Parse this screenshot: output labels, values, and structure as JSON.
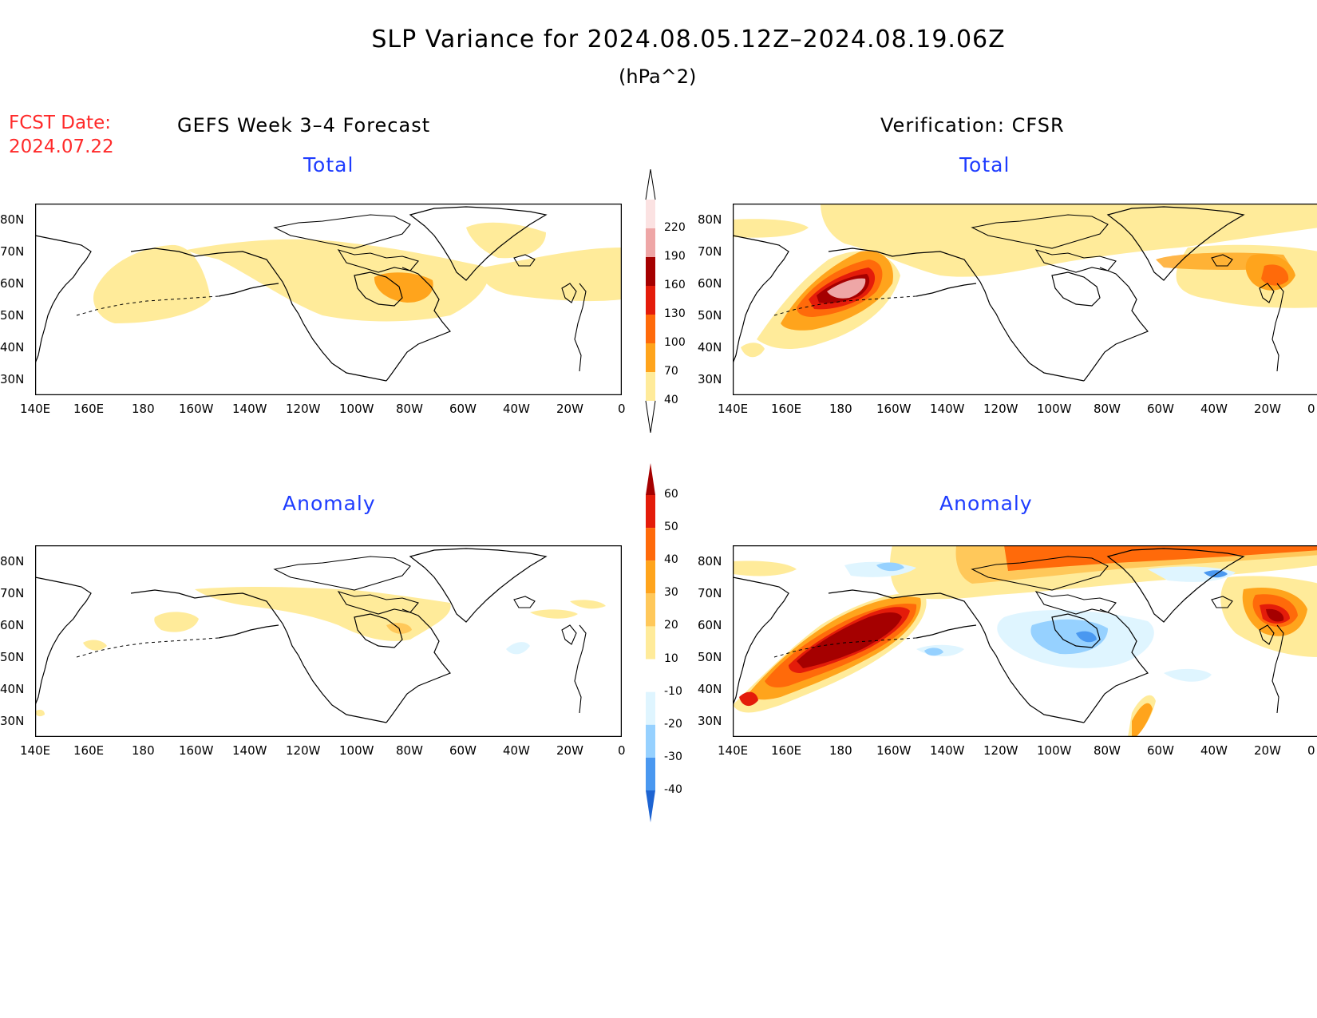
{
  "header": {
    "title": "SLP Variance for 2024.08.05.12Z–2024.08.19.06Z",
    "units": "(hPa^2)",
    "fcst_label": "FCST Date:",
    "fcst_date": "2024.07.22"
  },
  "columns": {
    "left_title": "GEFS Week 3–4 Forecast",
    "right_title": "Verification: CFSR"
  },
  "panel_labels": {
    "total": "Total",
    "anomaly": "Anomaly"
  },
  "axes": {
    "lat_labels": [
      "80N",
      "70N",
      "60N",
      "50N",
      "40N",
      "30N"
    ],
    "lon_labels": [
      "140E",
      "160E",
      "180",
      "160W",
      "140W",
      "120W",
      "100W",
      "80W",
      "60W",
      "40W",
      "20W",
      "0"
    ]
  },
  "colorbars": {
    "total": {
      "levels": [
        "40",
        "70",
        "100",
        "130",
        "160",
        "190",
        "220"
      ],
      "colors": [
        "#ffeb9a",
        "#ffa41c",
        "#ff6a0a",
        "#e41c0a",
        "#a50000",
        "#eea6a6",
        "#fbe2e2"
      ]
    },
    "anomaly": {
      "levels": [
        "60",
        "50",
        "40",
        "30",
        "20",
        "10",
        "-10",
        "-20",
        "-30",
        "-40"
      ],
      "colors": [
        "#a50000",
        "#e41c0a",
        "#ff6a0a",
        "#ffa41c",
        "#ffc85a",
        "#ffeb9a",
        "#ffffff",
        "#dff5ff",
        "#96d1ff",
        "#4a98f0",
        "#1e64d2"
      ]
    }
  }
}
